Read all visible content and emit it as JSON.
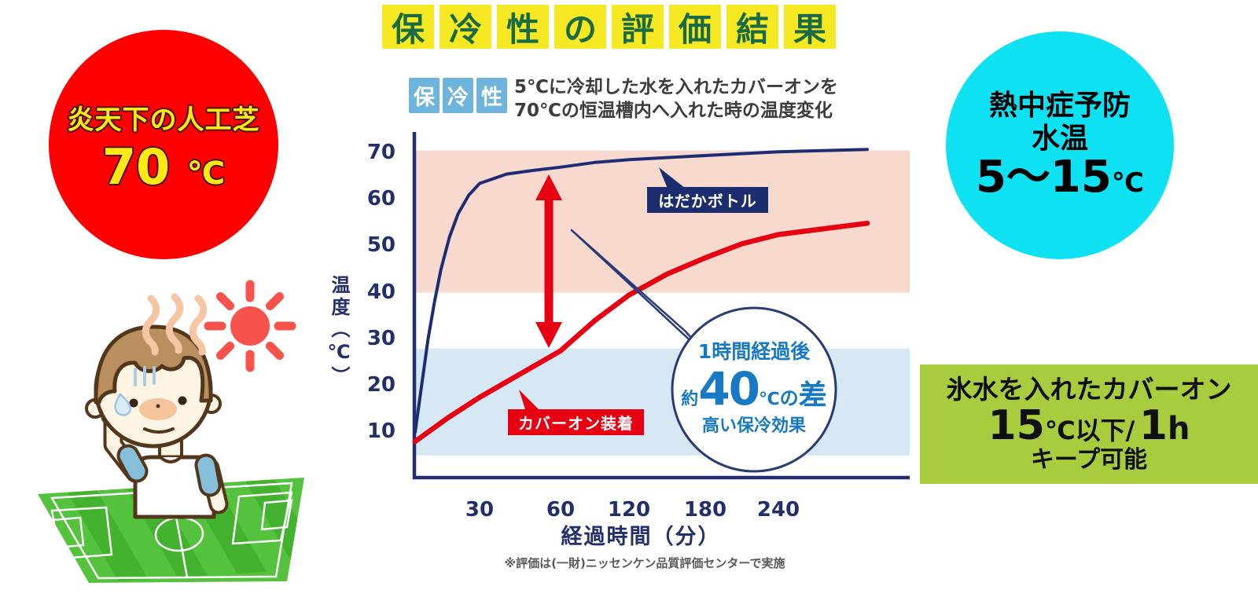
{
  "title": {
    "chars": [
      "保",
      "冷",
      "性",
      "の",
      "評",
      "価",
      "結",
      "果"
    ]
  },
  "left_badge": {
    "line1": "炎天下の人工芝",
    "temp": "70",
    "unit": "℃"
  },
  "right_badge": {
    "line1": "熱中症予防",
    "line2": "水温",
    "range": "5～15",
    "unit": "℃"
  },
  "chart": {
    "tag_chars": [
      "保",
      "冷",
      "性"
    ],
    "description_line1": "5℃に冷却した水を入れたカバーオンを",
    "description_line2": "70℃の恒温槽内へ入れた時の温度変化",
    "y_axis_title": "温度（℃）",
    "x_axis_title": "経過時間（分）",
    "label_naked": "はだかボトル",
    "label_covered": "カバーオン装着",
    "callout": {
      "line1": "1時間経過後",
      "approx": "約",
      "value": "40",
      "degree": "℃",
      "particle": "の",
      "diff": "差",
      "line3": "高い保冷効果"
    },
    "note": "※評価は(一財)ニッセンケン品質評価センターで実施"
  },
  "green_banner": {
    "line1": "氷水を入れたカバーオン",
    "temp": "15",
    "cond": "℃以下",
    "slash": "/",
    "hours": "1",
    "hour_unit": "h",
    "line3": "キープ可能"
  },
  "chart_data": {
    "type": "line",
    "title": "保冷性：5℃に冷却した水を入れたカバーオンを70℃の恒温槽内へ入れた時の温度変化",
    "xlabel": "経過時間（分）",
    "ylabel": "温度（℃）",
    "x_ticks": [
      30,
      60,
      120,
      180,
      240
    ],
    "y_ticks": [
      10,
      20,
      30,
      40,
      50,
      60,
      70
    ],
    "ylim": [
      5,
      72
    ],
    "grid": false,
    "legend_position": "inline-labels",
    "series": [
      {
        "name": "はだかボトル",
        "color": "#1e2c74",
        "points": [
          [
            0,
            10
          ],
          [
            3,
            20
          ],
          [
            6,
            30
          ],
          [
            9,
            38
          ],
          [
            12,
            45
          ],
          [
            16,
            52
          ],
          [
            20,
            57
          ],
          [
            25,
            61
          ],
          [
            30,
            63.5
          ],
          [
            40,
            65.5
          ],
          [
            50,
            66.3
          ],
          [
            60,
            67
          ],
          [
            90,
            68
          ],
          [
            120,
            68.6
          ],
          [
            180,
            69.5
          ],
          [
            240,
            70.3
          ]
        ]
      },
      {
        "name": "カバーオン装着",
        "color": "#e60012",
        "points": [
          [
            0,
            8
          ],
          [
            15,
            13
          ],
          [
            30,
            17.5
          ],
          [
            45,
            22.5
          ],
          [
            60,
            27.5
          ],
          [
            90,
            34
          ],
          [
            120,
            39.5
          ],
          [
            150,
            44
          ],
          [
            180,
            47.5
          ],
          [
            210,
            50.5
          ],
          [
            240,
            52.5
          ]
        ]
      }
    ],
    "bands": [
      {
        "label": "hot-zone",
        "range": [
          40,
          70.6
        ],
        "color": "#f7dacd"
      },
      {
        "label": "cool-zone",
        "range": [
          5,
          28
        ],
        "color": "#d7e8f5"
      }
    ],
    "annotations": [
      "1時間経過後 約40℃の差 高い保冷効果"
    ]
  }
}
